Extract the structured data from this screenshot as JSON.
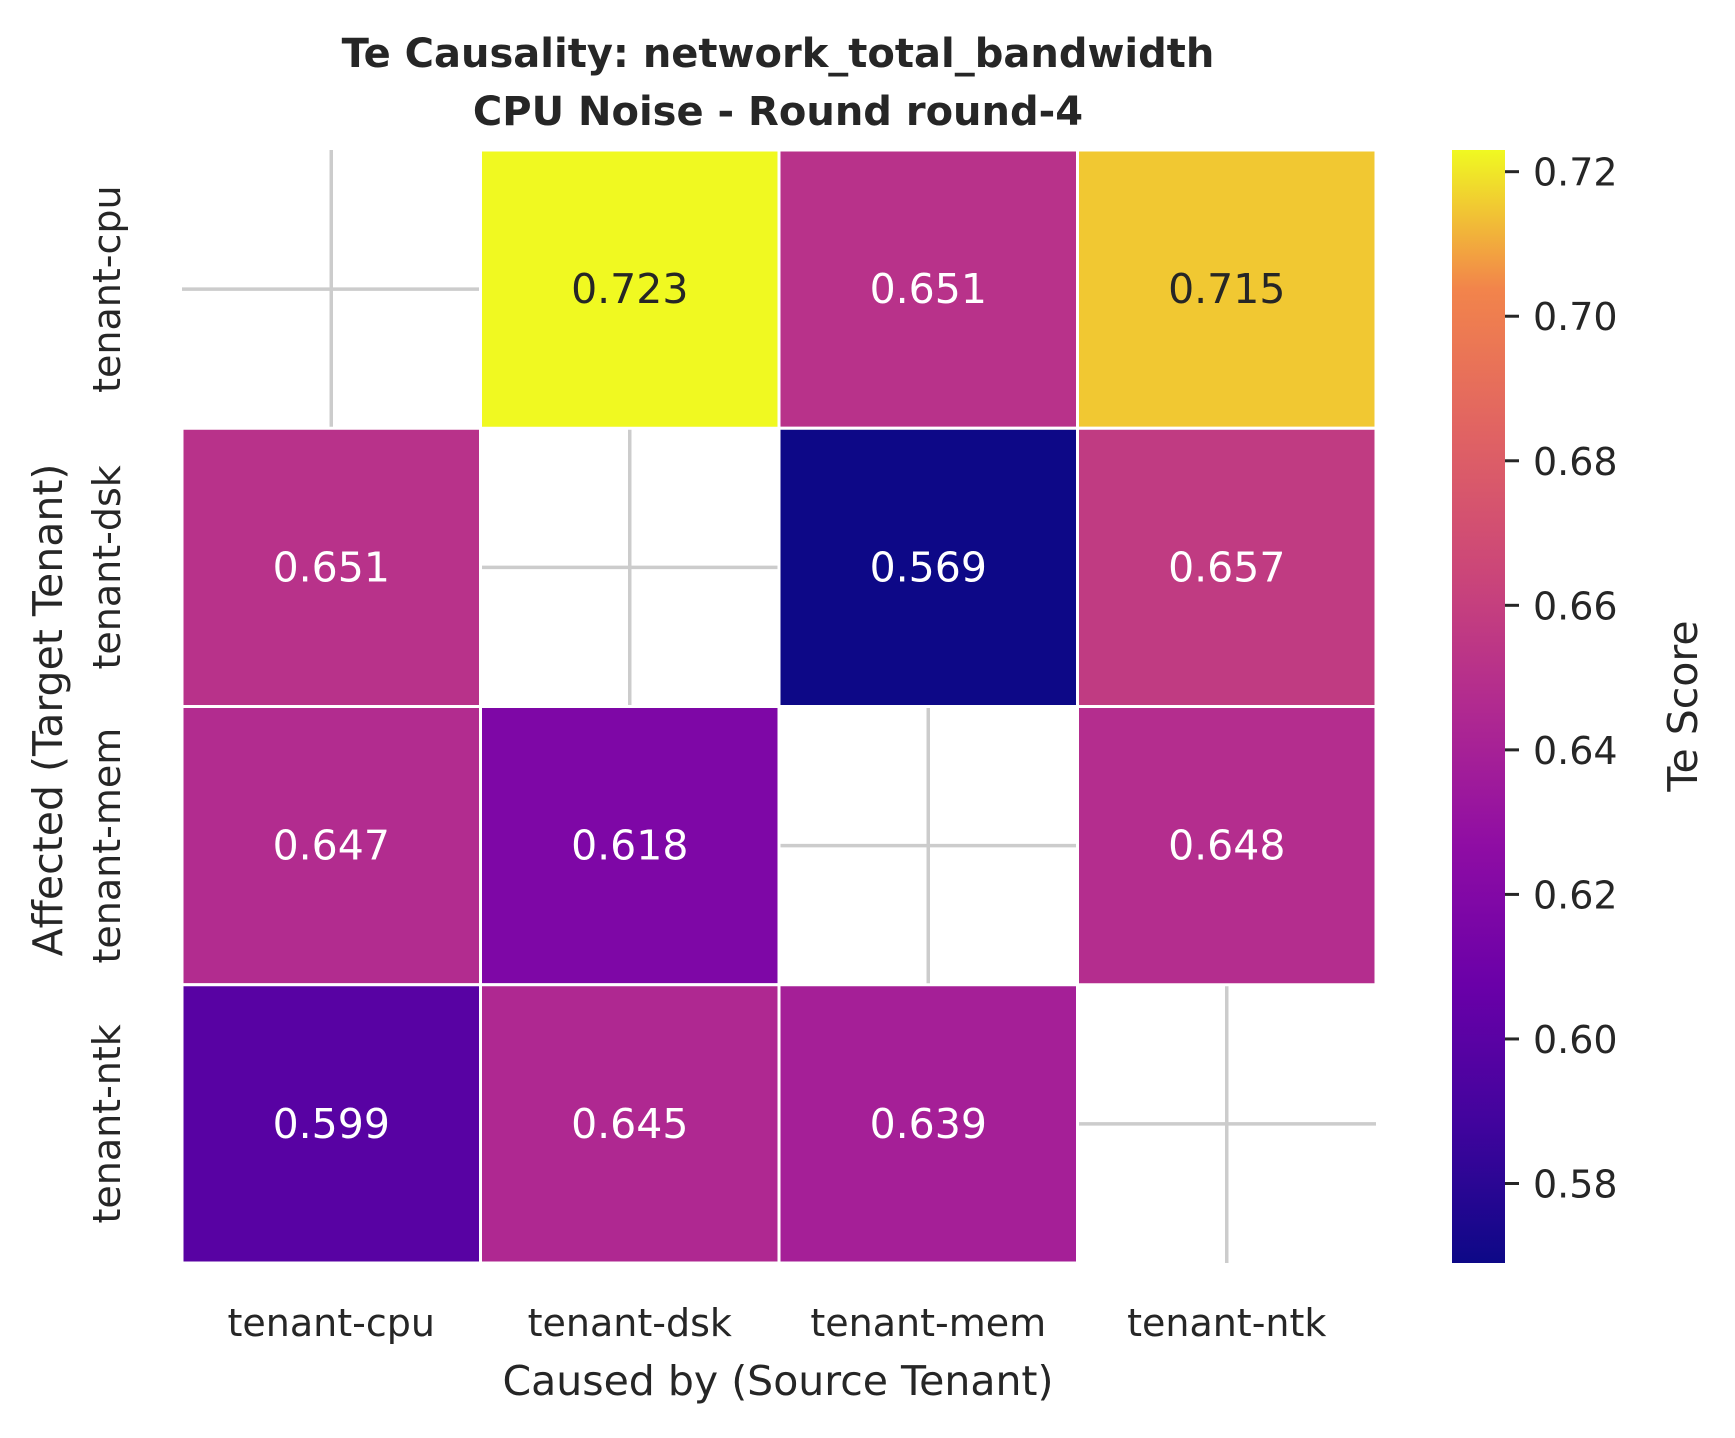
{
  "chart_data": {
    "type": "heatmap",
    "title_lines": [
      "Te Causality: network_total_bandwidth",
      "CPU Noise - Round round-4"
    ],
    "xlabel": "Caused by (Source Tenant)",
    "ylabel": "Affected (Target Tenant)",
    "x_categories": [
      "tenant-cpu",
      "tenant-dsk",
      "tenant-mem",
      "tenant-ntk"
    ],
    "y_categories": [
      "tenant-cpu",
      "tenant-dsk",
      "tenant-mem",
      "tenant-ntk"
    ],
    "values": [
      [
        null,
        0.723,
        0.651,
        0.715
      ],
      [
        0.651,
        null,
        0.569,
        0.657
      ],
      [
        0.647,
        0.618,
        null,
        0.648
      ],
      [
        0.599,
        0.645,
        0.639,
        null
      ]
    ],
    "value_labels": [
      [
        null,
        "0.723",
        "0.651",
        "0.715"
      ],
      [
        "0.651",
        null,
        "0.569",
        "0.657"
      ],
      [
        "0.647",
        "0.618",
        null,
        "0.648"
      ],
      [
        "0.599",
        "0.645",
        "0.639",
        null
      ]
    ],
    "colormap": "plasma",
    "colorbar": {
      "label": "Te Score",
      "range": [
        0.569,
        0.723
      ],
      "ticks": [
        0.58,
        0.6,
        0.62,
        0.64,
        0.66,
        0.68,
        0.7,
        0.72
      ],
      "tick_labels": [
        "0.58",
        "0.60",
        "0.62",
        "0.64",
        "0.66",
        "0.68",
        "0.70",
        "0.72"
      ]
    },
    "grid": true,
    "legend": "none"
  }
}
